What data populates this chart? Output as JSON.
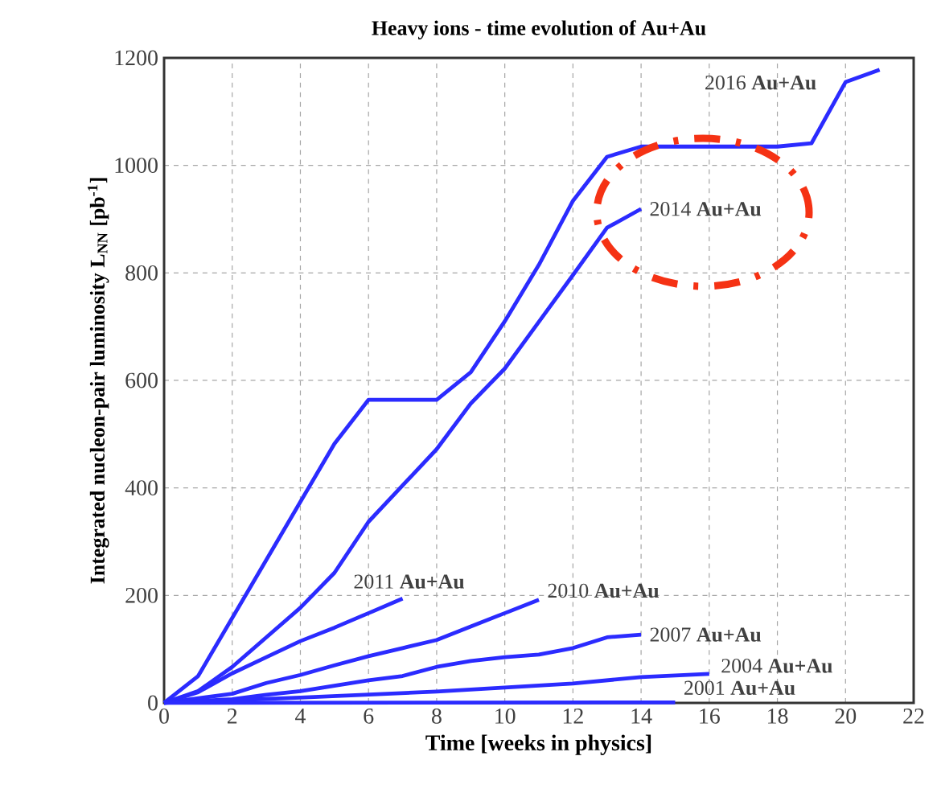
{
  "chart_data": {
    "type": "line",
    "title": "Heavy ions - time evolution of Au+Au",
    "xlabel": "Time [weeks in physics]",
    "ylabel": "Integrated nucleon-pair luminosity L$_{NN}$ [pb$^{-1}$]",
    "xlim": [
      0,
      22
    ],
    "ylim": [
      0,
      1200
    ],
    "xticks": [
      0,
      2,
      4,
      6,
      8,
      10,
      12,
      14,
      16,
      18,
      20,
      22
    ],
    "yticks": [
      0,
      200,
      400,
      600,
      800,
      1000,
      1200
    ],
    "grid": true,
    "marker": "none",
    "line_style": "solid",
    "series": [
      {
        "name": "2016 **Au+Au**",
        "color": "#2b2bff",
        "x": [
          0,
          1,
          5,
          6,
          8,
          9,
          10,
          11,
          12,
          13,
          14,
          18,
          19,
          20,
          21
        ],
        "values": [
          0,
          50,
          482,
          564,
          564,
          615,
          710,
          815,
          934,
          1016,
          1035,
          1035,
          1041,
          1155,
          1178
        ]
      },
      {
        "name": "2014 **Au+Au**",
        "color": "#2b2bff",
        "x": [
          0,
          1,
          2,
          3,
          4,
          5,
          6,
          8,
          9,
          10,
          11,
          12,
          13,
          14
        ],
        "values": [
          0,
          22,
          67,
          122,
          177,
          242,
          337,
          472,
          557,
          622,
          709,
          796,
          884,
          919
        ]
      },
      {
        "name": "2011 **Au+Au**",
        "color": "#2b2bff",
        "x": [
          0,
          1,
          2,
          3,
          4,
          5,
          6,
          7
        ],
        "values": [
          0,
          20,
          55,
          85,
          115,
          140,
          167,
          194
        ]
      },
      {
        "name": "2010 **Au+Au**",
        "color": "#2b2bff",
        "x": [
          0,
          2,
          3,
          4,
          5,
          6,
          7,
          8,
          9,
          10,
          11
        ],
        "values": [
          0,
          17,
          37,
          52,
          70,
          87,
          102,
          117,
          142,
          167,
          192
        ]
      },
      {
        "name": "2007 **Au+Au**",
        "color": "#2b2bff",
        "x": [
          0,
          2,
          3,
          4,
          6,
          7,
          8,
          9,
          10,
          11,
          12,
          13,
          14
        ],
        "values": [
          0,
          7,
          15,
          22,
          42,
          50,
          67,
          78,
          85,
          90,
          102,
          122,
          127
        ]
      },
      {
        "name": "2004 **Au+Au**",
        "color": "#2b2bff",
        "x": [
          0,
          4,
          8,
          12,
          14,
          16
        ],
        "values": [
          0,
          10,
          21,
          36,
          48,
          54
        ]
      },
      {
        "name": "2001 **Au+Au**",
        "color": "#2b2bff",
        "x": [
          0,
          15
        ],
        "values": [
          0,
          1
        ]
      }
    ]
  }
}
